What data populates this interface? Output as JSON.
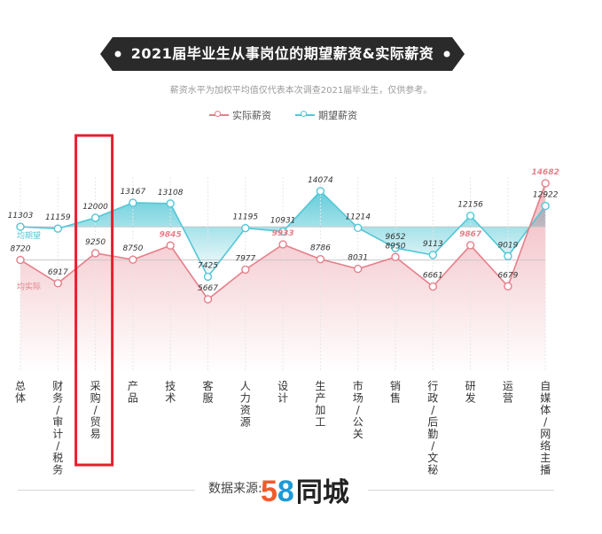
{
  "title": "2021届毕业生从事岗位的期望薪资&实际薪资",
  "subtitle": "薪资水平为加权平均值仅代表本次调查2021届毕业生，仅供参考。",
  "source": {
    "label": "数据来源:",
    "logo_5": "5",
    "logo_8": "8",
    "logo_text": "同城"
  },
  "colors": {
    "actual": "#e57f8a",
    "expected": "#52c7d6",
    "highlight": "#e5202e",
    "banner": "#2a2a2a"
  },
  "chart_data": {
    "type": "line",
    "categories": [
      "总体",
      "财务/审计/税务",
      "采购/贸易",
      "产品",
      "技术",
      "客服",
      "人力资源",
      "设计",
      "生产加工",
      "市场/公关",
      "销售",
      "行政/后勤/文秘",
      "研发",
      "运营",
      "自媒体/网络主播"
    ],
    "series": [
      {
        "name": "实际薪资",
        "values": [
          8720,
          6917,
          9250,
          8750,
          9845,
          5667,
          7977,
          9933,
          8786,
          8031,
          8950,
          6661,
          9867,
          6679,
          14682
        ],
        "labels": [
          "8720",
          "6917",
          "9250",
          "8750",
          "9845",
          "5667",
          "7977",
          "9933",
          "8786",
          "8031",
          "8950",
          "6661",
          "9867",
          "6679",
          "14682"
        ]
      },
      {
        "name": "期望薪资",
        "values": [
          11303,
          11159,
          12000,
          13167,
          13108,
          7425,
          11195,
          10931,
          14074,
          11214,
          9652,
          9113,
          12156,
          9019,
          12922
        ],
        "labels": [
          "11303",
          "11159",
          "12000",
          "13167",
          "13108",
          "7425",
          "11195",
          "10931",
          "14074",
          "11214",
          "9652",
          "9113",
          "12156",
          "9019",
          "12922"
        ]
      }
    ],
    "avg_labels": {
      "expected": "均期望",
      "actual": "均实际"
    },
    "highlighted_category": "采购/贸易",
    "highlighted_actual_labels": [
      "技术",
      "设计",
      "研发",
      "自媒体/网络主播"
    ],
    "ylim": [
      0,
      17500
    ]
  }
}
